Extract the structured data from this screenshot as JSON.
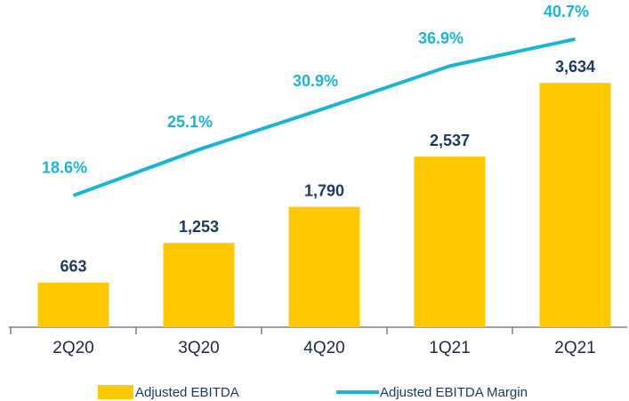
{
  "chart_data": {
    "type": "combo",
    "categories": [
      "2Q20",
      "3Q20",
      "4Q20",
      "1Q21",
      "2Q21"
    ],
    "series": [
      {
        "name": "Adjusted EBITDA",
        "type": "bar",
        "color": "#ffc800",
        "values": [
          663,
          1253,
          1790,
          2537,
          3634
        ],
        "value_labels": [
          "663",
          "1,253",
          "1,790",
          "2,537",
          "3,634"
        ]
      },
      {
        "name": "Adjusted EBITDA Margin",
        "type": "line",
        "color": "#1ab4d8",
        "axis": "y2",
        "values": [
          18.6,
          25.1,
          30.9,
          36.9,
          40.7
        ],
        "value_labels": [
          "18.6%",
          "25.1%",
          "30.9%",
          "36.9%",
          "40.7%"
        ]
      }
    ],
    "ylim": [
      0,
      4800
    ],
    "y2lim": [
      0,
      45.6
    ],
    "grid": false,
    "legend": "bottom"
  }
}
